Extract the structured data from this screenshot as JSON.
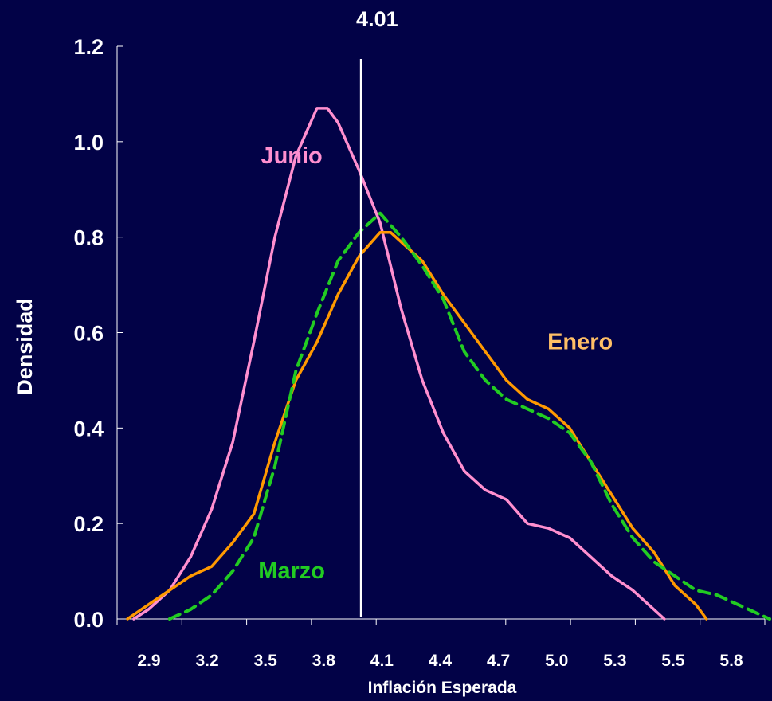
{
  "chart_data": {
    "type": "line",
    "title": "",
    "xlabel": "Inflación Esperada",
    "ylabel": "Densidad",
    "xlim": [
      2.9,
      5.95
    ],
    "ylim": [
      0,
      1.2
    ],
    "x_ticks": [
      "2.9",
      "3.2",
      "3.5",
      "3.8",
      "4.1",
      "4.4",
      "4.7",
      "5.0",
      "5.3",
      "5.5",
      "5.8"
    ],
    "y_ticks": [
      "0.0",
      "0.2",
      "0.4",
      "0.6",
      "0.8",
      "1.0",
      "1.2"
    ],
    "grid": false,
    "reference_line": {
      "x": 4.01,
      "label": "4.01",
      "color": "#ffffff"
    },
    "series": [
      {
        "name": "Junio",
        "color": "#ff8fcf",
        "style": "solid",
        "points": [
          [
            2.93,
            0.0
          ],
          [
            3.0,
            0.02
          ],
          [
            3.1,
            0.06
          ],
          [
            3.2,
            0.13
          ],
          [
            3.3,
            0.23
          ],
          [
            3.4,
            0.37
          ],
          [
            3.5,
            0.58
          ],
          [
            3.6,
            0.8
          ],
          [
            3.7,
            0.97
          ],
          [
            3.8,
            1.07
          ],
          [
            3.85,
            1.07
          ],
          [
            3.9,
            1.04
          ],
          [
            4.0,
            0.94
          ],
          [
            4.1,
            0.83
          ],
          [
            4.2,
            0.65
          ],
          [
            4.3,
            0.5
          ],
          [
            4.4,
            0.39
          ],
          [
            4.5,
            0.31
          ],
          [
            4.6,
            0.27
          ],
          [
            4.7,
            0.25
          ],
          [
            4.8,
            0.2
          ],
          [
            4.9,
            0.19
          ],
          [
            5.0,
            0.17
          ],
          [
            5.1,
            0.13
          ],
          [
            5.2,
            0.09
          ],
          [
            5.3,
            0.06
          ],
          [
            5.4,
            0.02
          ],
          [
            5.45,
            0.0
          ]
        ]
      },
      {
        "name": "Enero",
        "color": "#ff9900",
        "style": "solid",
        "points": [
          [
            2.9,
            0.0
          ],
          [
            3.0,
            0.03
          ],
          [
            3.1,
            0.06
          ],
          [
            3.2,
            0.09
          ],
          [
            3.3,
            0.11
          ],
          [
            3.4,
            0.16
          ],
          [
            3.5,
            0.22
          ],
          [
            3.6,
            0.37
          ],
          [
            3.7,
            0.5
          ],
          [
            3.8,
            0.58
          ],
          [
            3.9,
            0.68
          ],
          [
            4.0,
            0.76
          ],
          [
            4.1,
            0.81
          ],
          [
            4.15,
            0.81
          ],
          [
            4.2,
            0.79
          ],
          [
            4.3,
            0.75
          ],
          [
            4.4,
            0.68
          ],
          [
            4.5,
            0.62
          ],
          [
            4.6,
            0.56
          ],
          [
            4.7,
            0.5
          ],
          [
            4.8,
            0.46
          ],
          [
            4.9,
            0.44
          ],
          [
            5.0,
            0.4
          ],
          [
            5.1,
            0.33
          ],
          [
            5.2,
            0.26
          ],
          [
            5.3,
            0.19
          ],
          [
            5.4,
            0.14
          ],
          [
            5.5,
            0.07
          ],
          [
            5.6,
            0.03
          ],
          [
            5.65,
            0.0
          ]
        ]
      },
      {
        "name": "Marzo",
        "color": "#22cc22",
        "style": "dashed",
        "points": [
          [
            3.1,
            0.0
          ],
          [
            3.2,
            0.02
          ],
          [
            3.3,
            0.05
          ],
          [
            3.4,
            0.1
          ],
          [
            3.5,
            0.17
          ],
          [
            3.6,
            0.32
          ],
          [
            3.7,
            0.52
          ],
          [
            3.8,
            0.64
          ],
          [
            3.9,
            0.75
          ],
          [
            4.0,
            0.81
          ],
          [
            4.1,
            0.85
          ],
          [
            4.2,
            0.8
          ],
          [
            4.3,
            0.74
          ],
          [
            4.4,
            0.67
          ],
          [
            4.5,
            0.56
          ],
          [
            4.6,
            0.5
          ],
          [
            4.7,
            0.46
          ],
          [
            4.8,
            0.44
          ],
          [
            4.9,
            0.42
          ],
          [
            5.0,
            0.39
          ],
          [
            5.1,
            0.33
          ],
          [
            5.2,
            0.24
          ],
          [
            5.3,
            0.17
          ],
          [
            5.4,
            0.12
          ],
          [
            5.5,
            0.09
          ],
          [
            5.6,
            0.06
          ],
          [
            5.7,
            0.05
          ],
          [
            5.8,
            0.03
          ],
          [
            5.9,
            0.01
          ],
          [
            5.95,
            0.0
          ]
        ]
      }
    ],
    "labels": [
      {
        "text": "Junio",
        "x": 3.68,
        "y": 0.955,
        "color": "#ff8fcf"
      },
      {
        "text": "Enero",
        "x": 5.05,
        "y": 0.565,
        "color": "#ffbf66"
      },
      {
        "text": "Marzo",
        "x": 3.68,
        "y": 0.085,
        "color": "#22cc22"
      }
    ]
  }
}
